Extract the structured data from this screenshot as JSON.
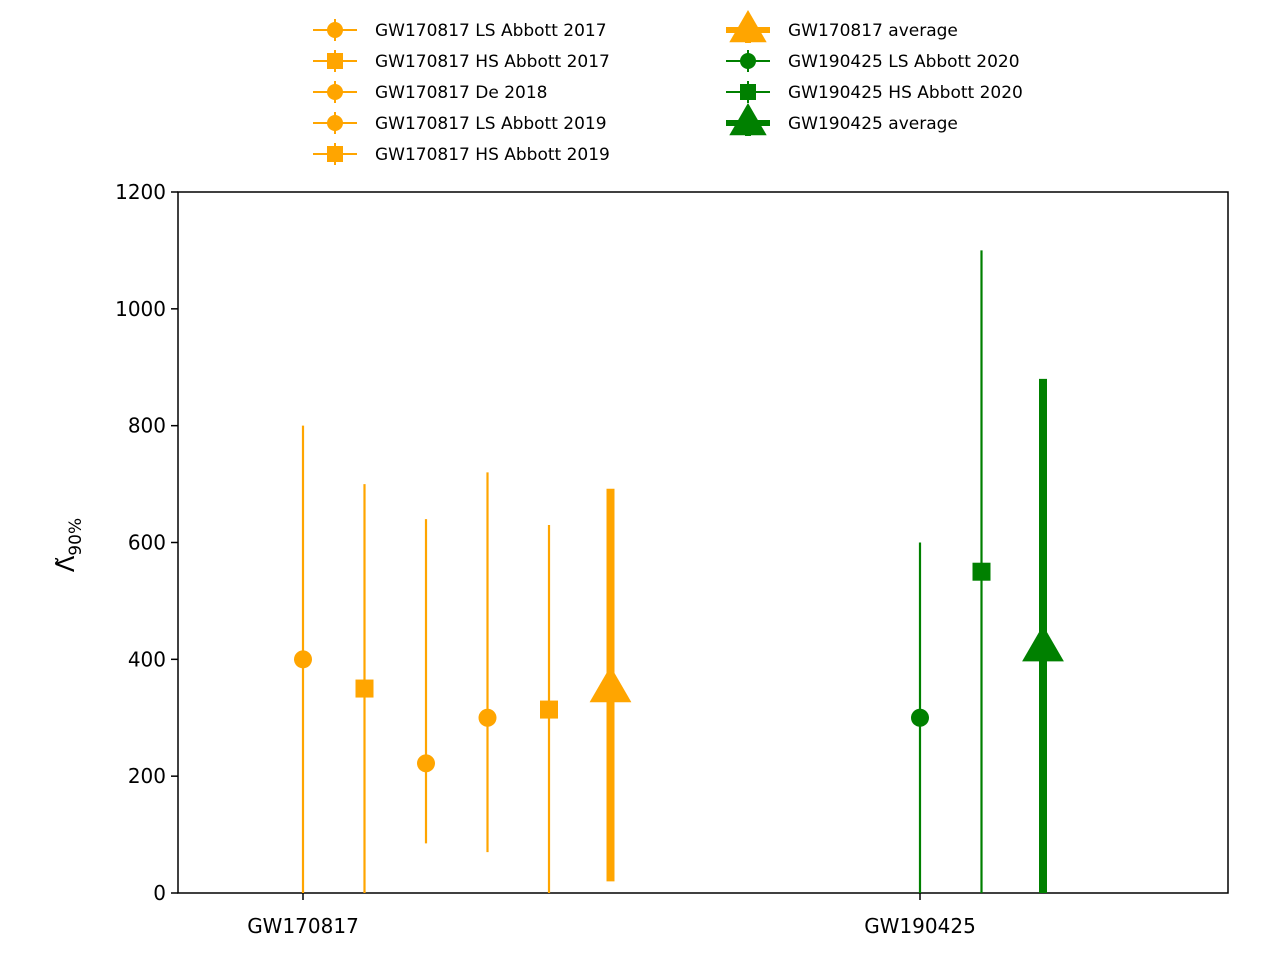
{
  "chart_data": {
    "type": "scatter",
    "title": "",
    "xlabel": "",
    "ylabel": "Λ̃",
    "ylabel_sub": "90%",
    "ylim": [
      0,
      1200
    ],
    "yticks": [
      0,
      200,
      400,
      600,
      800,
      1000,
      1200
    ],
    "categories": [
      "GW170817",
      "GW190425"
    ],
    "grid": false,
    "legend_position": "top-center",
    "series": [
      {
        "name": "GW170817 LS Abbott 2017",
        "category": "GW170817",
        "marker": "circle",
        "color": "#ffa500",
        "value": 400,
        "err_low": 0,
        "err_high": 800
      },
      {
        "name": "GW170817 HS Abbott 2017",
        "category": "GW170817",
        "marker": "square",
        "color": "#ffa500",
        "value": 350,
        "err_low": 0,
        "err_high": 700
      },
      {
        "name": "GW170817 De 2018",
        "category": "GW170817",
        "marker": "circle",
        "color": "#ffa500",
        "value": 222,
        "err_low": 85,
        "err_high": 640
      },
      {
        "name": "GW170817 LS Abbott 2019",
        "category": "GW170817",
        "marker": "circle",
        "color": "#ffa500",
        "value": 300,
        "err_low": 70,
        "err_high": 720
      },
      {
        "name": "GW170817 HS Abbott 2019",
        "category": "GW170817",
        "marker": "square",
        "color": "#ffa500",
        "value": 314,
        "err_low": 0,
        "err_high": 630
      },
      {
        "name": "GW170817 average",
        "category": "GW170817",
        "marker": "triangle",
        "color": "#ffa500",
        "value": 350,
        "err_low": 20,
        "err_high": 692,
        "heavy": true
      },
      {
        "name": "GW190425 LS Abbott 2020",
        "category": "GW190425",
        "marker": "circle",
        "color": "#008000",
        "value": 300,
        "err_low": 0,
        "err_high": 600
      },
      {
        "name": "GW190425 HS Abbott 2020",
        "category": "GW190425",
        "marker": "square",
        "color": "#008000",
        "value": 550,
        "err_low": 0,
        "err_high": 1100
      },
      {
        "name": "GW190425 average",
        "category": "GW190425",
        "marker": "triangle",
        "color": "#008000",
        "value": 420,
        "err_low": 0,
        "err_high": 880,
        "heavy": true
      }
    ]
  }
}
